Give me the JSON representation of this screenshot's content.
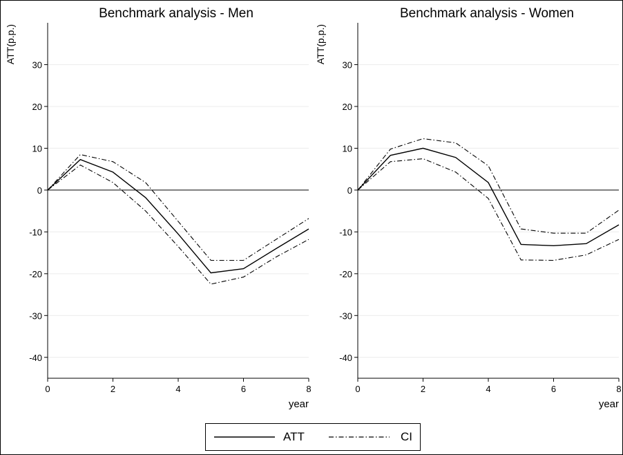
{
  "chart_data": [
    {
      "type": "line",
      "title": "Benchmark analysis - Men",
      "ylabel": "ATT(p.p.)",
      "xlabel": "year",
      "xlim": [
        0,
        8
      ],
      "ylim": [
        -45,
        40
      ],
      "xticks": [
        0,
        2,
        4,
        6,
        8
      ],
      "yticks": [
        -40,
        -30,
        -20,
        -10,
        0,
        10,
        20,
        30
      ],
      "grid": true,
      "reference_line": 0,
      "x": [
        0,
        1,
        2,
        3,
        4,
        5,
        6,
        7,
        8
      ],
      "series": [
        {
          "name": "ATT",
          "style": "solid",
          "values": [
            0,
            7.3,
            4.3,
            -1.8,
            -10.5,
            -19.8,
            -18.8,
            -14.0,
            -9.3
          ]
        },
        {
          "name": "CI upper",
          "style": "dashdot",
          "values": [
            0,
            8.5,
            6.8,
            1.8,
            -7.5,
            -16.8,
            -16.8,
            -11.8,
            -6.8
          ]
        },
        {
          "name": "CI lower",
          "style": "dashdot",
          "values": [
            0,
            6.0,
            1.8,
            -5.0,
            -13.5,
            -22.5,
            -20.8,
            -16.0,
            -11.8
          ]
        }
      ]
    },
    {
      "type": "line",
      "title": "Benchmark analysis - Women",
      "ylabel": "ATT(p.p.)",
      "xlabel": "year",
      "xlim": [
        0,
        8
      ],
      "ylim": [
        -45,
        40
      ],
      "xticks": [
        0,
        2,
        4,
        6,
        8
      ],
      "yticks": [
        -40,
        -30,
        -20,
        -10,
        0,
        10,
        20,
        30
      ],
      "grid": true,
      "reference_line": 0,
      "x": [
        0,
        1,
        2,
        3,
        4,
        5,
        6,
        7,
        8
      ],
      "series": [
        {
          "name": "ATT",
          "style": "solid",
          "values": [
            0,
            8.3,
            10.0,
            7.8,
            1.8,
            -13.0,
            -13.3,
            -12.8,
            -8.3
          ]
        },
        {
          "name": "CI upper",
          "style": "dashdot",
          "values": [
            0,
            9.8,
            12.3,
            11.3,
            5.8,
            -9.3,
            -10.3,
            -10.3,
            -4.8
          ]
        },
        {
          "name": "CI lower",
          "style": "dashdot",
          "values": [
            0,
            6.8,
            7.5,
            4.3,
            -2.0,
            -16.7,
            -16.8,
            -15.5,
            -11.8
          ]
        }
      ]
    }
  ],
  "legend": {
    "items": [
      {
        "label": "ATT",
        "style": "solid"
      },
      {
        "label": "CI",
        "style": "dashdot"
      }
    ]
  }
}
